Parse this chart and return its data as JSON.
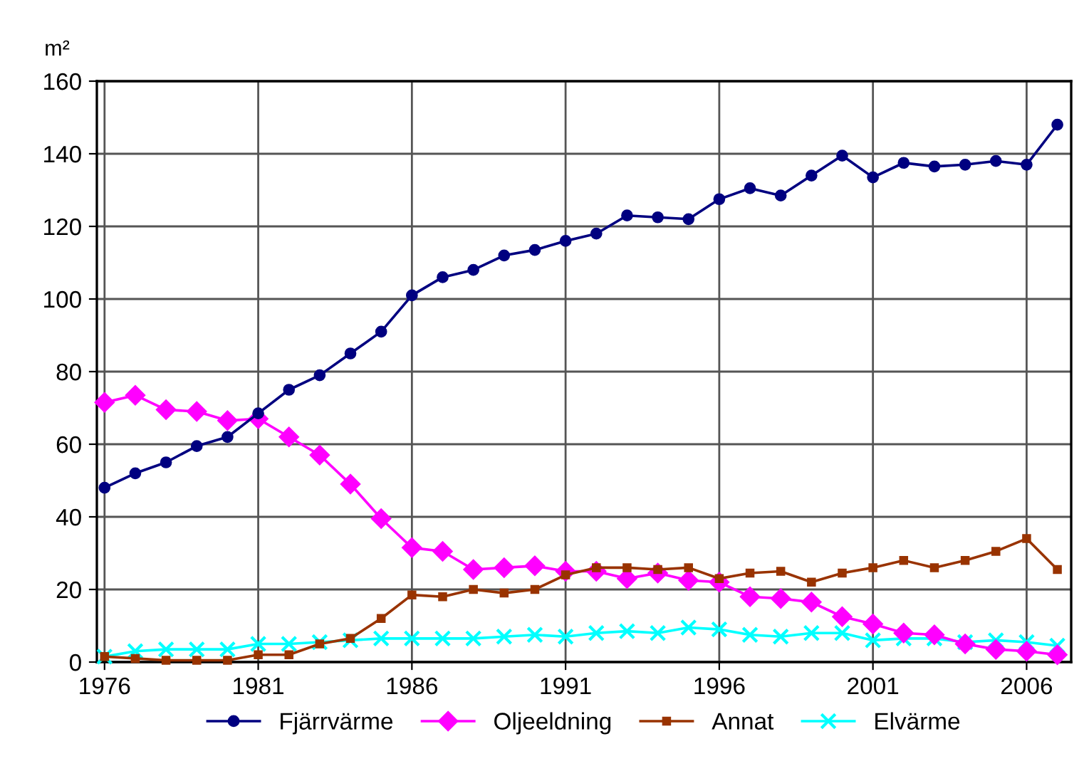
{
  "chart_data": {
    "type": "line",
    "ylabel": "m²",
    "categories": [
      "1976",
      null,
      null,
      null,
      null,
      "1981",
      null,
      null,
      null,
      null,
      "1986",
      null,
      null,
      null,
      null,
      "1991",
      null,
      null,
      null,
      null,
      "1996",
      null,
      null,
      null,
      null,
      "2001",
      null,
      null,
      null,
      null,
      "2006",
      null
    ],
    "ylim": [
      0,
      160
    ],
    "yticks": [
      0,
      20,
      40,
      60,
      80,
      100,
      120,
      140,
      160
    ],
    "grid": true,
    "legend": "bottom",
    "series": [
      {
        "name": "Fjärrvärme",
        "color": "#000080",
        "marker": "circle",
        "values": [
          48,
          52,
          55,
          59.5,
          62,
          68.5,
          75,
          79,
          85,
          91,
          101,
          106,
          108,
          112,
          113.5,
          116,
          118,
          123,
          122.5,
          122,
          127.5,
          130.5,
          128.5,
          134,
          139.5,
          133.5,
          137.5,
          136.5,
          137,
          138,
          137,
          148
        ]
      },
      {
        "name": "Oljeeldning",
        "color": "#ff00ff",
        "marker": "diamond",
        "values": [
          71.5,
          73.5,
          69.5,
          69,
          66.5,
          67,
          62,
          57,
          49,
          39.5,
          31.5,
          30.5,
          25.5,
          26,
          26.5,
          25,
          25,
          23,
          24.5,
          22.5,
          22,
          18,
          17.5,
          16.5,
          12.5,
          10.5,
          8,
          7.5,
          5,
          3.5,
          3,
          2
        ]
      },
      {
        "name": "Annat",
        "color": "#993300",
        "marker": "square",
        "values": [
          1.5,
          1,
          0.5,
          0.5,
          0.5,
          2,
          2,
          5,
          6.5,
          12,
          18.5,
          18,
          20,
          19,
          20,
          24,
          26,
          26,
          25.5,
          26,
          23,
          24.5,
          25,
          22,
          24.5,
          26,
          28,
          26,
          28,
          30.5,
          34,
          25.5
        ]
      },
      {
        "name": "Elvärme",
        "color": "#00ffff",
        "marker": "cross",
        "values": [
          1.5,
          3,
          3.5,
          3.5,
          3.5,
          5,
          5,
          5.5,
          6,
          6.5,
          6.5,
          6.5,
          6.5,
          7,
          7.5,
          7,
          8,
          8.5,
          8,
          9.5,
          9,
          7.5,
          7,
          8,
          8,
          6,
          6.5,
          6.5,
          5.5,
          6,
          5.5,
          4.5
        ]
      }
    ]
  }
}
